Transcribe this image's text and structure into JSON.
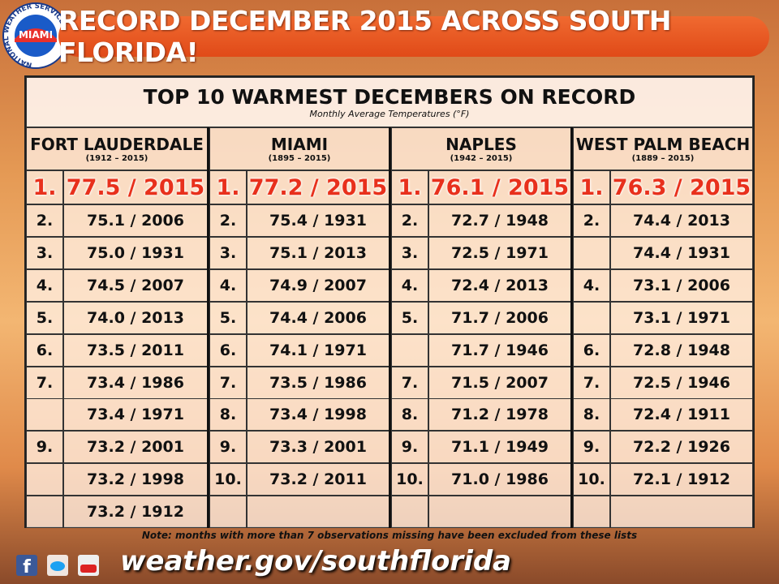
{
  "header": {
    "title": "RECORD DECEMBER 2015 ACROSS SOUTH FLORIDA!",
    "logo_ring": "NATIONAL WEATHER SERVICE",
    "logo_city": "MIAMI"
  },
  "table": {
    "title": "TOP 10 WARMEST DECEMBERS ON RECORD",
    "subtitle": "Monthly Average Temperatures (°F)",
    "stations": [
      {
        "name": "FORT LAUDERDALE",
        "period": "(1912 – 2015)",
        "rows": [
          [
            "1.",
            "77.5 / 2015"
          ],
          [
            "2.",
            "75.1 / 2006"
          ],
          [
            "3.",
            "75.0 / 1931"
          ],
          [
            "4.",
            "74.5 / 2007"
          ],
          [
            "5.",
            "74.0 / 2013"
          ],
          [
            "6.",
            "73.5 / 2011"
          ],
          [
            "7.",
            "73.4 / 1986"
          ],
          [
            null,
            "73.4 / 1971"
          ],
          [
            "9.",
            "73.2 / 2001"
          ],
          [
            null,
            "73.2 / 1998"
          ],
          [
            null,
            "73.2 / 1912"
          ]
        ]
      },
      {
        "name": "MIAMI",
        "period": "(1895 – 2015)",
        "rows": [
          [
            "1.",
            "77.2 / 2015"
          ],
          [
            "2.",
            "75.4 / 1931"
          ],
          [
            "3.",
            "75.1 / 2013"
          ],
          [
            "4.",
            "74.9 / 2007"
          ],
          [
            "5.",
            "74.4 / 2006"
          ],
          [
            "6.",
            "74.1 / 1971"
          ],
          [
            "7.",
            "73.5 / 1986"
          ],
          [
            "8.",
            "73.4 / 1998"
          ],
          [
            "9.",
            "73.3 / 2001"
          ],
          [
            "10.",
            "73.2 / 2011"
          ]
        ]
      },
      {
        "name": "NAPLES",
        "period": "(1942 – 2015)",
        "rows": [
          [
            "1.",
            "76.1 / 2015"
          ],
          [
            "2.",
            "72.7 / 1948"
          ],
          [
            "3.",
            "72.5 / 1971"
          ],
          [
            "4.",
            "72.4 / 2013"
          ],
          [
            "5.",
            "71.7 / 2006"
          ],
          [
            null,
            "71.7 / 1946"
          ],
          [
            "7.",
            "71.5 / 2007"
          ],
          [
            "8.",
            "71.2 / 1978"
          ],
          [
            "9.",
            "71.1 / 1949"
          ],
          [
            "10.",
            "71.0 / 1986"
          ]
        ]
      },
      {
        "name": "WEST PALM BEACH",
        "period": "(1889 – 2015)",
        "rows": [
          [
            "1.",
            "76.3 / 2015"
          ],
          [
            "2.",
            "74.4 / 2013"
          ],
          [
            null,
            "74.4 / 1931"
          ],
          [
            "4.",
            "73.1 / 2006"
          ],
          [
            null,
            "73.1 / 1971"
          ],
          [
            "6.",
            "72.8 / 1948"
          ],
          [
            "7.",
            "72.5 / 1946"
          ],
          [
            "8.",
            "72.4 / 1911"
          ],
          [
            "9.",
            "72.2 / 1926"
          ],
          [
            "10.",
            "72.1 / 1912"
          ]
        ]
      }
    ]
  },
  "note": "Note: months with more than 7 observations missing have been excluded from these lists",
  "footer": {
    "url": "weather.gov/southflorida"
  }
}
